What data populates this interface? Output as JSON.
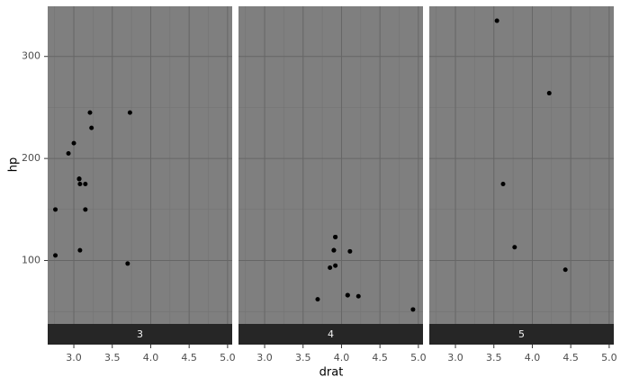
{
  "chart_data": {
    "type": "scatter",
    "x_label": "drat",
    "y_label": "hp",
    "xlim": [
      2.66,
      5.06
    ],
    "ylim": [
      37.85,
      349.15
    ],
    "xticks": [
      {
        "value": 3,
        "label": "3.0"
      },
      {
        "value": 3.5,
        "label": "3.5"
      },
      {
        "value": 4,
        "label": "4.0"
      },
      {
        "value": 4.5,
        "label": "4.5"
      },
      {
        "value": 5,
        "label": "5.0"
      }
    ],
    "yticks": [
      100,
      200,
      300
    ],
    "grid": true,
    "color": "#000000",
    "facets": [
      {
        "label": "3",
        "x": [
          3.08,
          3.15,
          2.76,
          3.21,
          3.07,
          3.07,
          3.07,
          2.93,
          3.0,
          3.23,
          3.7,
          2.76,
          3.15,
          3.73,
          3.08
        ],
        "y": [
          110,
          175,
          105,
          245,
          180,
          180,
          180,
          205,
          215,
          230,
          97,
          150,
          150,
          245,
          175
        ]
      },
      {
        "label": "4",
        "x": [
          3.9,
          3.9,
          3.85,
          3.69,
          3.92,
          3.92,
          3.92,
          4.08,
          4.93,
          4.22,
          4.08,
          4.11
        ],
        "y": [
          110,
          110,
          93,
          62,
          95,
          123,
          123,
          66,
          52,
          65,
          66,
          109
        ]
      },
      {
        "label": "5",
        "x": [
          4.43,
          3.77,
          4.22,
          3.62,
          3.54
        ],
        "y": [
          91,
          113,
          264,
          175,
          335
        ]
      }
    ]
  }
}
